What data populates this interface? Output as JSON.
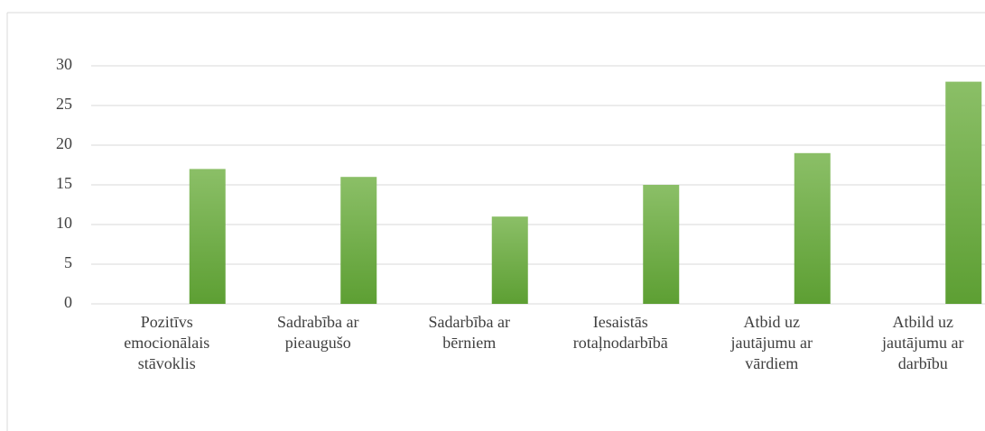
{
  "chart_data": {
    "type": "bar",
    "categories": [
      "Pozitīvs emocionālais stāvoklis",
      "Sadrabība ar pieaugušo",
      "Sadarbība ar bērniem",
      "Iesaistās rotaļnodarbībā",
      "Atbid uz jautājumu ar vārdiem",
      "Atbild uz jautājumu ar darbību"
    ],
    "values": [
      17,
      16,
      11,
      15,
      19,
      28
    ],
    "color": "#70ad47",
    "ylim": [
      0,
      30
    ],
    "yticks": [
      0,
      5,
      10,
      15,
      20,
      25,
      30
    ],
    "grid": true
  }
}
